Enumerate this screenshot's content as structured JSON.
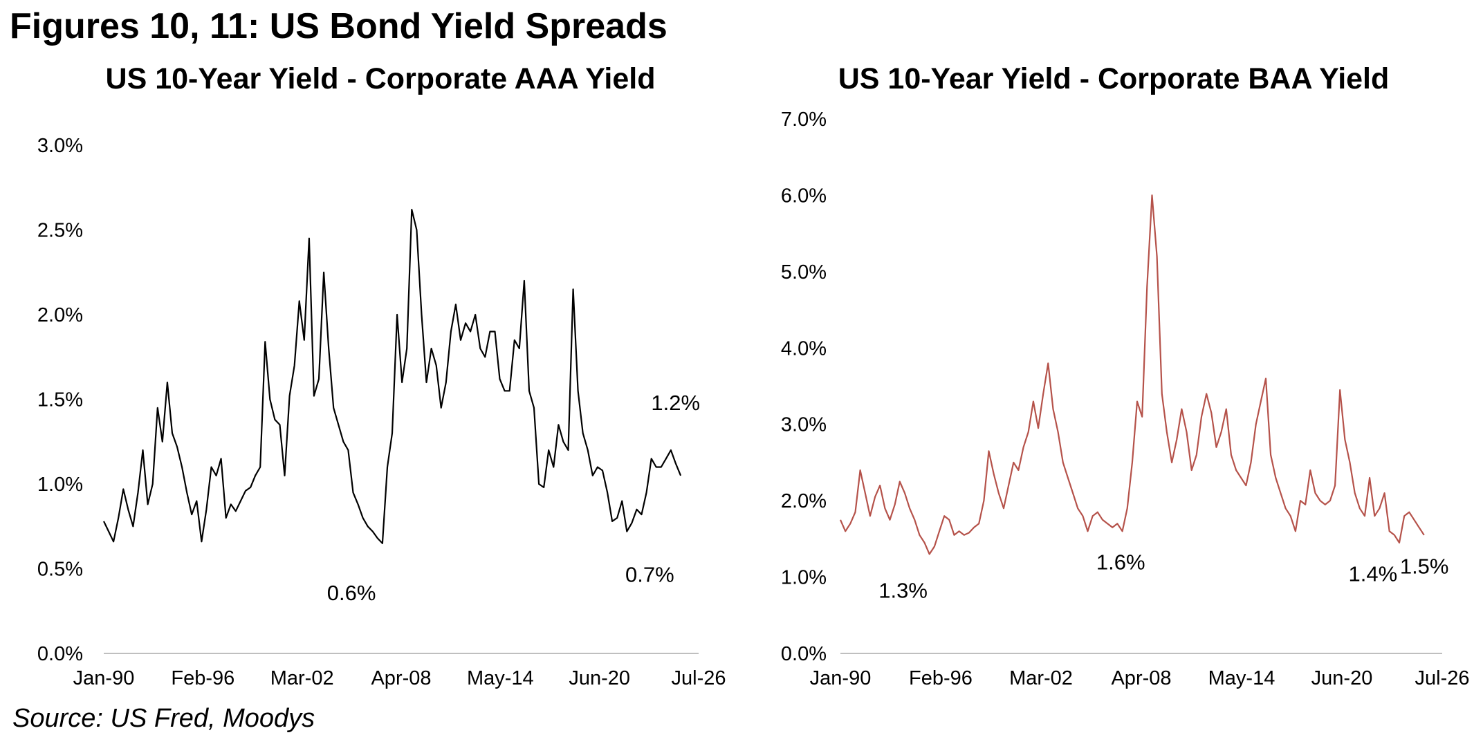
{
  "main_title": "Figures 10, 11: US Bond Yield Spreads",
  "source": "Source: US Fred, Moodys",
  "chart_data": [
    {
      "type": "line",
      "title": "US 10-Year Yield - Corporate AAA Yield",
      "color": "#000000",
      "ylim": [
        0,
        3.0
      ],
      "y_ticks": [
        "0.0%",
        "0.5%",
        "1.0%",
        "1.5%",
        "2.0%",
        "2.5%",
        "3.0%"
      ],
      "x_ticks": [
        "Jan-90",
        "Feb-96",
        "Mar-02",
        "Apr-08",
        "May-14",
        "Jun-20",
        "Jul-26"
      ],
      "x_range": [
        1990.0,
        2026.5
      ],
      "series": [
        {
          "x": [
            1990.0,
            1990.3,
            1990.6,
            1990.9,
            1991.2,
            1991.5,
            1991.8,
            1992.1,
            1992.4,
            1992.7,
            1993.0,
            1993.3,
            1993.6,
            1993.9,
            1994.2,
            1994.5,
            1994.8,
            1995.1,
            1995.4,
            1995.7,
            1996.0,
            1996.3,
            1996.6,
            1996.9,
            1997.2,
            1997.5,
            1997.8,
            1998.1,
            1998.4,
            1998.7,
            1999.0,
            1999.3,
            1999.6,
            1999.9,
            2000.2,
            2000.5,
            2000.8,
            2001.1,
            2001.4,
            2001.7,
            2002.0,
            2002.3,
            2002.6,
            2002.9,
            2003.2,
            2003.5,
            2003.8,
            2004.1,
            2004.4,
            2004.7,
            2005.0,
            2005.3,
            2005.6,
            2005.9,
            2006.2,
            2006.5,
            2006.8,
            2007.1,
            2007.4,
            2007.7,
            2008.0,
            2008.3,
            2008.6,
            2008.9,
            2009.2,
            2009.5,
            2009.8,
            2010.1,
            2010.4,
            2010.7,
            2011.0,
            2011.3,
            2011.6,
            2011.9,
            2012.2,
            2012.5,
            2012.8,
            2013.1,
            2013.4,
            2013.7,
            2014.0,
            2014.3,
            2014.6,
            2014.9,
            2015.2,
            2015.5,
            2015.8,
            2016.1,
            2016.4,
            2016.7,
            2017.0,
            2017.3,
            2017.6,
            2017.9,
            2018.2,
            2018.5,
            2018.8,
            2019.1,
            2019.4,
            2019.7,
            2020.0,
            2020.3,
            2020.6,
            2020.9,
            2021.2,
            2021.5,
            2021.8,
            2022.1,
            2022.4,
            2022.7,
            2023.0,
            2023.3,
            2023.6,
            2023.9,
            2024.2,
            2024.5,
            2024.8,
            2025.1,
            2025.4
          ],
          "values": [
            0.78,
            0.72,
            0.66,
            0.8,
            0.97,
            0.85,
            0.75,
            0.95,
            1.2,
            0.88,
            1.0,
            1.45,
            1.25,
            1.6,
            1.3,
            1.22,
            1.1,
            0.95,
            0.82,
            0.9,
            0.66,
            0.85,
            1.1,
            1.05,
            1.15,
            0.8,
            0.88,
            0.84,
            0.9,
            0.96,
            0.98,
            1.05,
            1.1,
            1.84,
            1.5,
            1.38,
            1.35,
            1.05,
            1.52,
            1.7,
            2.08,
            1.85,
            2.45,
            1.52,
            1.62,
            2.25,
            1.8,
            1.45,
            1.35,
            1.25,
            1.2,
            0.95,
            0.88,
            0.8,
            0.75,
            0.72,
            0.68,
            0.65,
            1.1,
            1.3,
            2.0,
            1.6,
            1.8,
            2.62,
            2.5,
            2.0,
            1.6,
            1.8,
            1.7,
            1.45,
            1.6,
            1.9,
            2.06,
            1.85,
            1.95,
            1.9,
            2.0,
            1.8,
            1.75,
            1.9,
            1.9,
            1.62,
            1.55,
            1.55,
            1.85,
            1.8,
            2.2,
            1.55,
            1.45,
            1.0,
            0.98,
            1.2,
            1.1,
            1.35,
            1.25,
            1.2,
            2.15,
            1.55,
            1.3,
            1.2,
            1.05,
            1.1,
            1.08,
            0.95,
            0.78,
            0.8,
            0.9,
            0.72,
            0.77,
            0.85,
            0.82,
            0.95,
            1.15,
            1.1,
            1.1,
            1.15,
            1.2,
            1.12,
            1.05
          ]
        }
      ],
      "annotations": [
        {
          "text": "0.6%",
          "x": 2005.2,
          "y": 0.6
        },
        {
          "text": "0.7%",
          "x": 2023.5,
          "y": 0.7
        },
        {
          "text": "1.2%",
          "x": 2025.3,
          "y": 1.2
        }
      ]
    },
    {
      "type": "line",
      "title": "US 10-Year Yield - Corporate BAA Yield",
      "color": "#b5524a",
      "ylim": [
        0,
        7.0
      ],
      "y_ticks": [
        "0.0%",
        "1.0%",
        "2.0%",
        "3.0%",
        "4.0%",
        "5.0%",
        "6.0%",
        "7.0%"
      ],
      "x_ticks": [
        "Jan-90",
        "Feb-96",
        "Mar-02",
        "Apr-08",
        "May-14",
        "Jun-20",
        "Jul-26"
      ],
      "x_range": [
        1990.0,
        2026.5
      ],
      "series": [
        {
          "x": [
            1990.0,
            1990.3,
            1990.6,
            1990.9,
            1991.2,
            1991.5,
            1991.8,
            1992.1,
            1992.4,
            1992.7,
            1993.0,
            1993.3,
            1993.6,
            1993.9,
            1994.2,
            1994.5,
            1994.8,
            1995.1,
            1995.4,
            1995.7,
            1996.0,
            1996.3,
            1996.6,
            1996.9,
            1997.2,
            1997.5,
            1997.8,
            1998.1,
            1998.4,
            1998.7,
            1999.0,
            1999.3,
            1999.6,
            1999.9,
            2000.2,
            2000.5,
            2000.8,
            2001.1,
            2001.4,
            2001.7,
            2002.0,
            2002.3,
            2002.6,
            2002.9,
            2003.2,
            2003.5,
            2003.8,
            2004.1,
            2004.4,
            2004.7,
            2005.0,
            2005.3,
            2005.6,
            2005.9,
            2006.2,
            2006.5,
            2006.8,
            2007.1,
            2007.4,
            2007.7,
            2008.0,
            2008.3,
            2008.6,
            2008.9,
            2009.2,
            2009.5,
            2009.8,
            2010.1,
            2010.4,
            2010.7,
            2011.0,
            2011.3,
            2011.6,
            2011.9,
            2012.2,
            2012.5,
            2012.8,
            2013.1,
            2013.4,
            2013.7,
            2014.0,
            2014.3,
            2014.6,
            2014.9,
            2015.2,
            2015.5,
            2015.8,
            2016.1,
            2016.4,
            2016.7,
            2017.0,
            2017.3,
            2017.6,
            2017.9,
            2018.2,
            2018.5,
            2018.8,
            2019.1,
            2019.4,
            2019.7,
            2020.0,
            2020.3,
            2020.6,
            2020.9,
            2021.2,
            2021.5,
            2021.8,
            2022.1,
            2022.4,
            2022.7,
            2023.0,
            2023.3,
            2023.6,
            2023.9,
            2024.2,
            2024.5,
            2024.8,
            2025.1,
            2025.4
          ],
          "values": [
            1.75,
            1.6,
            1.7,
            1.85,
            2.4,
            2.1,
            1.8,
            2.05,
            2.2,
            1.9,
            1.75,
            1.95,
            2.25,
            2.1,
            1.9,
            1.75,
            1.55,
            1.45,
            1.3,
            1.4,
            1.6,
            1.8,
            1.75,
            1.55,
            1.6,
            1.55,
            1.58,
            1.65,
            1.7,
            2.0,
            2.65,
            2.35,
            2.1,
            1.9,
            2.2,
            2.5,
            2.4,
            2.7,
            2.9,
            3.3,
            2.95,
            3.4,
            3.8,
            3.2,
            2.9,
            2.5,
            2.3,
            2.1,
            1.9,
            1.8,
            1.6,
            1.8,
            1.85,
            1.75,
            1.7,
            1.65,
            1.7,
            1.6,
            1.9,
            2.5,
            3.3,
            3.1,
            4.8,
            6.0,
            5.2,
            3.4,
            2.9,
            2.5,
            2.8,
            3.2,
            2.9,
            2.4,
            2.6,
            3.1,
            3.4,
            3.15,
            2.7,
            2.9,
            3.2,
            2.6,
            2.4,
            2.3,
            2.2,
            2.5,
            3.0,
            3.3,
            3.6,
            2.6,
            2.3,
            2.1,
            1.9,
            1.8,
            1.6,
            2.0,
            1.95,
            2.4,
            2.1,
            2.0,
            1.95,
            2.0,
            2.2,
            3.45,
            2.8,
            2.5,
            2.1,
            1.9,
            1.8,
            2.3,
            1.8,
            1.9,
            2.1,
            1.6,
            1.55,
            1.45,
            1.8,
            1.85,
            1.75,
            1.65,
            1.55
          ]
        }
      ],
      "annotations": [
        {
          "text": "1.3%",
          "x": 1993.8,
          "y": 1.3
        },
        {
          "text": "1.6%",
          "x": 2007.0,
          "y": 1.6
        },
        {
          "text": "1.4%",
          "x": 2022.3,
          "y": 1.4
        },
        {
          "text": "1.5%",
          "x": 2025.5,
          "y": 1.5
        }
      ]
    }
  ]
}
